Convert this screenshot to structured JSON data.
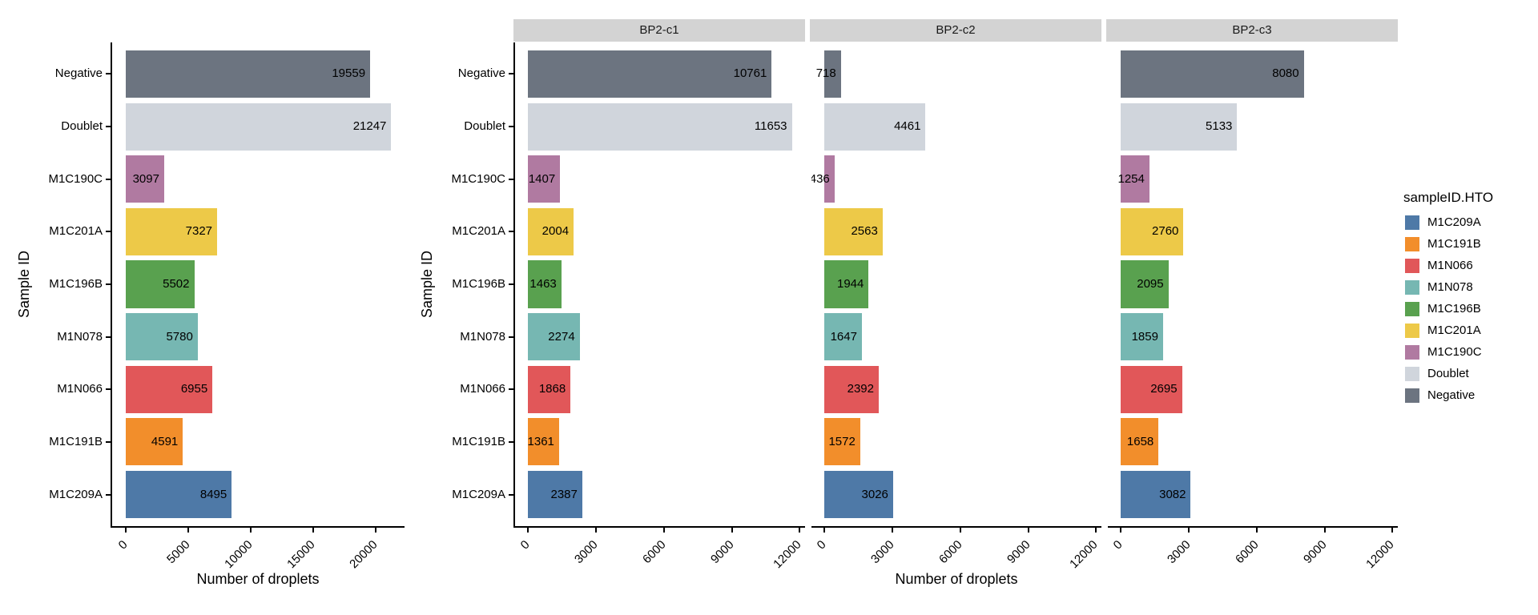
{
  "figure": {
    "background": "#ffffff",
    "y_axis_title": "Sample ID",
    "x_axis_title": "Number of droplets",
    "strip_background": "#d3d3d3"
  },
  "categories_top_to_bottom": [
    "Negative",
    "Doublet",
    "M1C190C",
    "M1C201A",
    "M1C196B",
    "M1N078",
    "M1N066",
    "M1C191B",
    "M1C209A"
  ],
  "palette": {
    "M1C209A": "#4E79A7",
    "M1C191B": "#F28E2B",
    "M1N066": "#E15759",
    "M1N078": "#76B7B2",
    "M1C196B": "#59A14F",
    "M1C201A": "#EDC948",
    "M1C190C": "#B07AA1",
    "Doublet": "#D0D5DC",
    "Negative": "#6C7480"
  },
  "chart_data": [
    {
      "type": "bar",
      "orientation": "horizontal",
      "panel": "combined",
      "facet_label": null,
      "title": "",
      "xlabel": "Number of droplets",
      "ylabel": "Sample ID",
      "categories": [
        "Negative",
        "Doublet",
        "M1C190C",
        "M1C201A",
        "M1C196B",
        "M1N078",
        "M1N066",
        "M1C191B",
        "M1C209A"
      ],
      "values": [
        19559,
        21247,
        3097,
        7327,
        5502,
        5780,
        6955,
        4591,
        8495
      ],
      "xticks": [
        0,
        5000,
        10000,
        15000,
        20000
      ],
      "xtick_labels": [
        "0",
        "5000",
        "10000",
        "15000",
        "20000"
      ],
      "xlim": [
        -1062,
        22309
      ],
      "grid": false,
      "value_labels": true
    },
    {
      "type": "bar",
      "orientation": "horizontal",
      "panel": "facet",
      "facet_label": "BP2-c1",
      "xlabel": "Number of droplets",
      "ylabel": "Sample ID",
      "categories": [
        "Negative",
        "Doublet",
        "M1C190C",
        "M1C201A",
        "M1C196B",
        "M1N078",
        "M1N066",
        "M1C191B",
        "M1C209A"
      ],
      "values": [
        10761,
        11653,
        1407,
        2004,
        1463,
        2274,
        1868,
        1361,
        2387
      ],
      "xticks": [
        0,
        3000,
        6000,
        9000,
        12000
      ],
      "xtick_labels": [
        "0",
        "3000",
        "6000",
        "9000",
        "12000"
      ],
      "xlim": [
        -583,
        12236
      ],
      "grid": false,
      "value_labels": true
    },
    {
      "type": "bar",
      "orientation": "horizontal",
      "panel": "facet",
      "facet_label": "BP2-c2",
      "xlabel": "Number of droplets",
      "ylabel": "Sample ID",
      "categories": [
        "Negative",
        "Doublet",
        "M1C190C",
        "M1C201A",
        "M1C196B",
        "M1N078",
        "M1N066",
        "M1C191B",
        "M1C209A"
      ],
      "values": [
        718,
        4461,
        436,
        2563,
        1944,
        1647,
        2392,
        1572,
        3026
      ],
      "xticks": [
        0,
        3000,
        6000,
        9000,
        12000
      ],
      "xtick_labels": [
        "0",
        "3000",
        "6000",
        "9000",
        "12000"
      ],
      "xlim": [
        -583,
        12236
      ],
      "grid": false,
      "value_labels": true
    },
    {
      "type": "bar",
      "orientation": "horizontal",
      "panel": "facet",
      "facet_label": "BP2-c3",
      "xlabel": "Number of droplets",
      "ylabel": "Sample ID",
      "categories": [
        "Negative",
        "Doublet",
        "M1C190C",
        "M1C201A",
        "M1C196B",
        "M1N078",
        "M1N066",
        "M1C191B",
        "M1C209A"
      ],
      "values": [
        8080,
        5133,
        1254,
        2760,
        2095,
        1859,
        2695,
        1658,
        3082
      ],
      "xticks": [
        0,
        3000,
        6000,
        9000,
        12000
      ],
      "xtick_labels": [
        "0",
        "3000",
        "6000",
        "9000",
        "12000"
      ],
      "xlim": [
        -583,
        12236
      ],
      "grid": false,
      "value_labels": true
    }
  ],
  "legend": {
    "title": "sampleID.HTO",
    "position": "right",
    "entries": [
      "M1C209A",
      "M1C191B",
      "M1N066",
      "M1N078",
      "M1C196B",
      "M1C201A",
      "M1C190C",
      "Doublet",
      "Negative"
    ]
  }
}
